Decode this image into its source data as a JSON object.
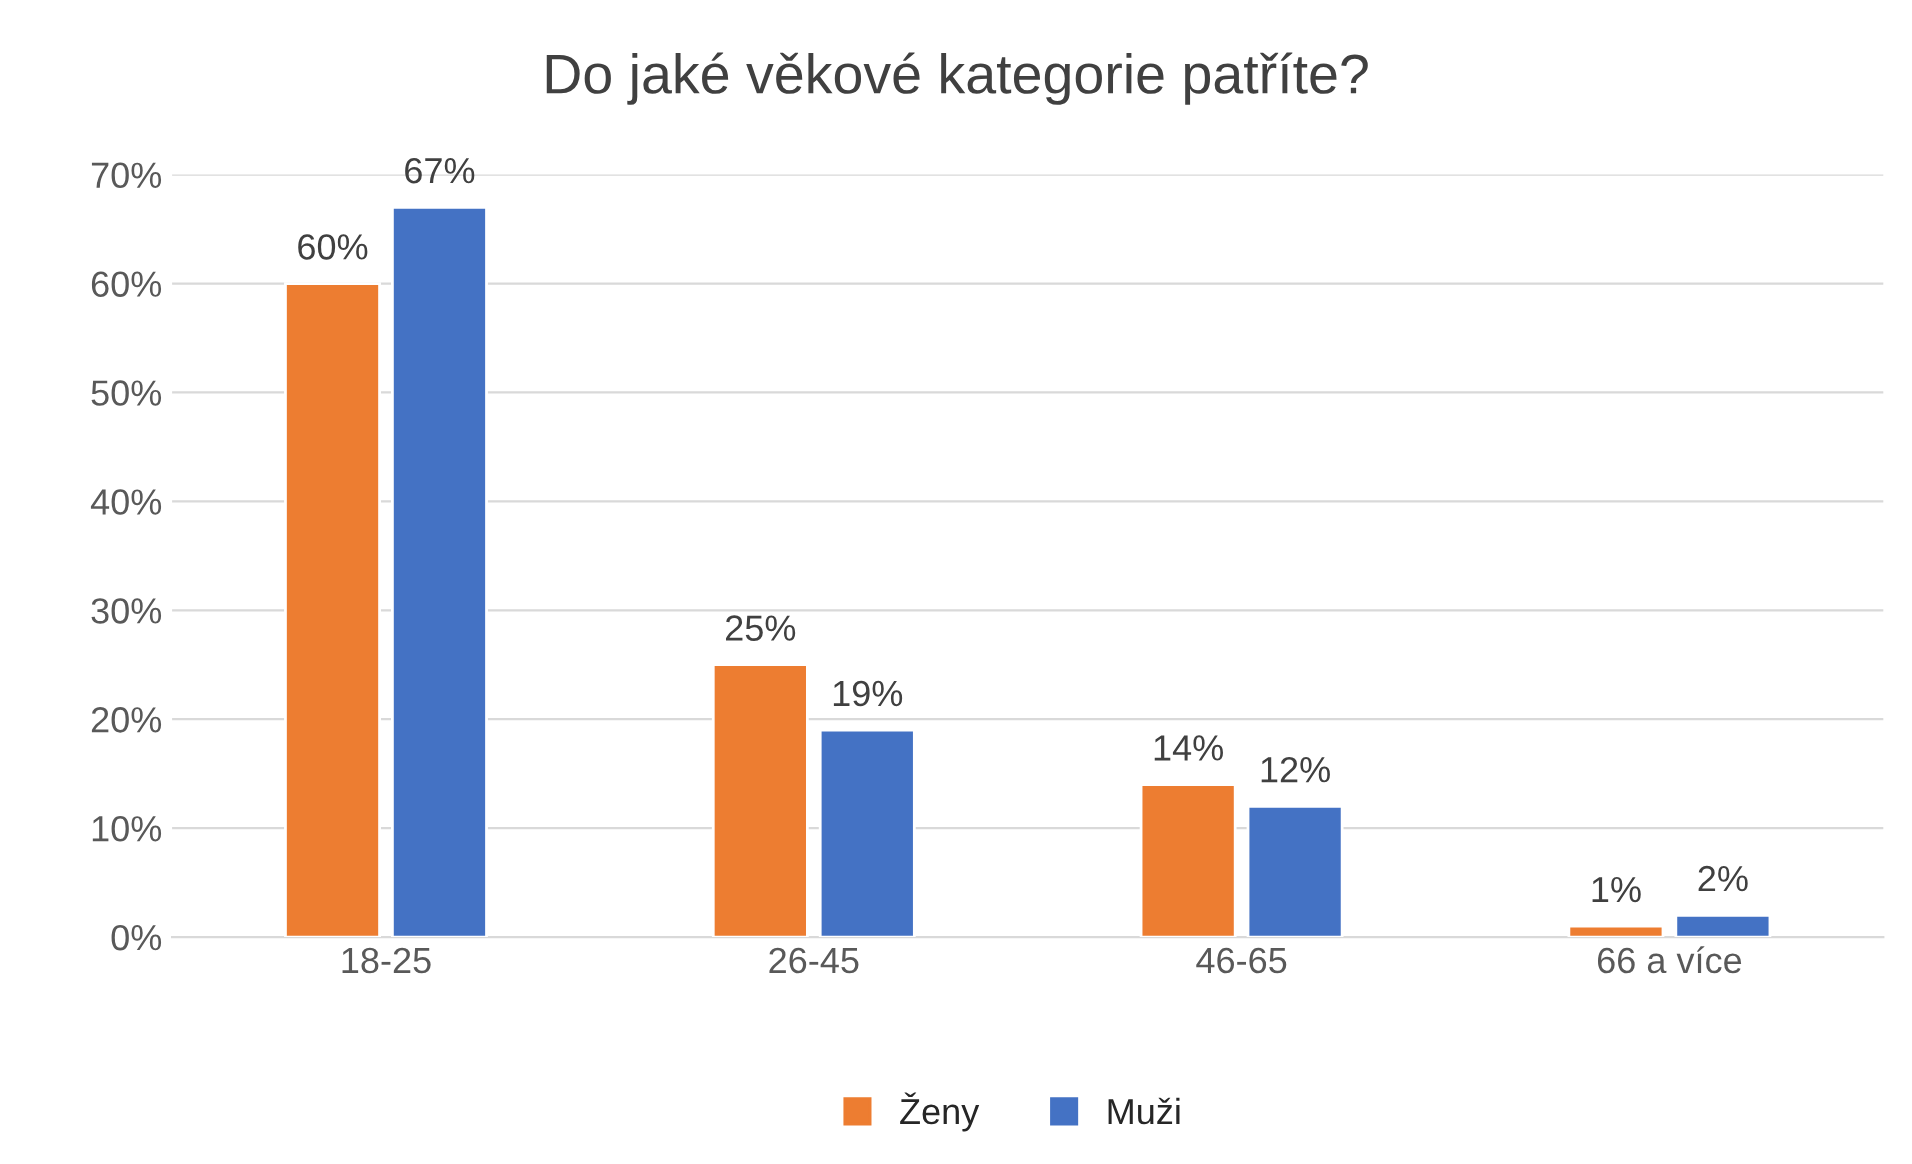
{
  "chart_data": {
    "type": "bar",
    "title": "Do jaké věkové kategorie patříte?",
    "categories": [
      "18-25",
      "26-45",
      "46-65",
      "66 a více"
    ],
    "series": [
      {
        "name": "Ženy",
        "color": "#ed7d31",
        "values": [
          60,
          25,
          14,
          1
        ],
        "value_labels": [
          "60%",
          "25%",
          "14%",
          "1%"
        ]
      },
      {
        "name": "Muži",
        "color": "#4472c4",
        "values": [
          67,
          19,
          12,
          2
        ],
        "value_labels": [
          "67%",
          "19%",
          "12%",
          "2%"
        ]
      }
    ],
    "ylim": [
      0,
      70
    ],
    "yticks": [
      {
        "value": 0,
        "label": "0%"
      },
      {
        "value": 10,
        "label": "10%"
      },
      {
        "value": 20,
        "label": "20%"
      },
      {
        "value": 30,
        "label": "30%"
      },
      {
        "value": 40,
        "label": "40%"
      },
      {
        "value": 50,
        "label": "50%"
      },
      {
        "value": 60,
        "label": "60%"
      },
      {
        "value": 70,
        "label": "70%"
      }
    ],
    "grid": "y",
    "legend": "bottom"
  }
}
